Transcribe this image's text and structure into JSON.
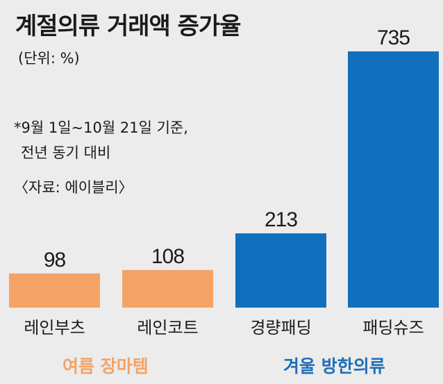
{
  "header": {
    "title": "계절의류 거래액 증가율",
    "unit": "(단위: %)"
  },
  "notes": {
    "line1": "*9월 1일~10월 21일 기준,",
    "line2": "전년 동기 대비",
    "source": "〈자료: 에이블리〉"
  },
  "groups": [
    {
      "label": "여름 장마템",
      "color": "#f4a366"
    },
    {
      "label": "겨울 방한의류",
      "color": "#1f6fb8"
    }
  ],
  "colors": {
    "summer": "#f4a366",
    "winter": "#1170bd",
    "background": "#ececec"
  },
  "chart_data": {
    "type": "bar",
    "categories": [
      "레인부츠",
      "레인코트",
      "경량패딩",
      "패딩슈즈"
    ],
    "values": [
      98,
      108,
      213,
      735
    ],
    "groups": [
      "여름 장마템",
      "여름 장마템",
      "겨울 방한의류",
      "겨울 방한의류"
    ],
    "title": "계절의류 거래액 증가율",
    "ylabel": "",
    "xlabel": "",
    "ylim": [
      0,
      735
    ],
    "grid": false,
    "legend": "none"
  }
}
